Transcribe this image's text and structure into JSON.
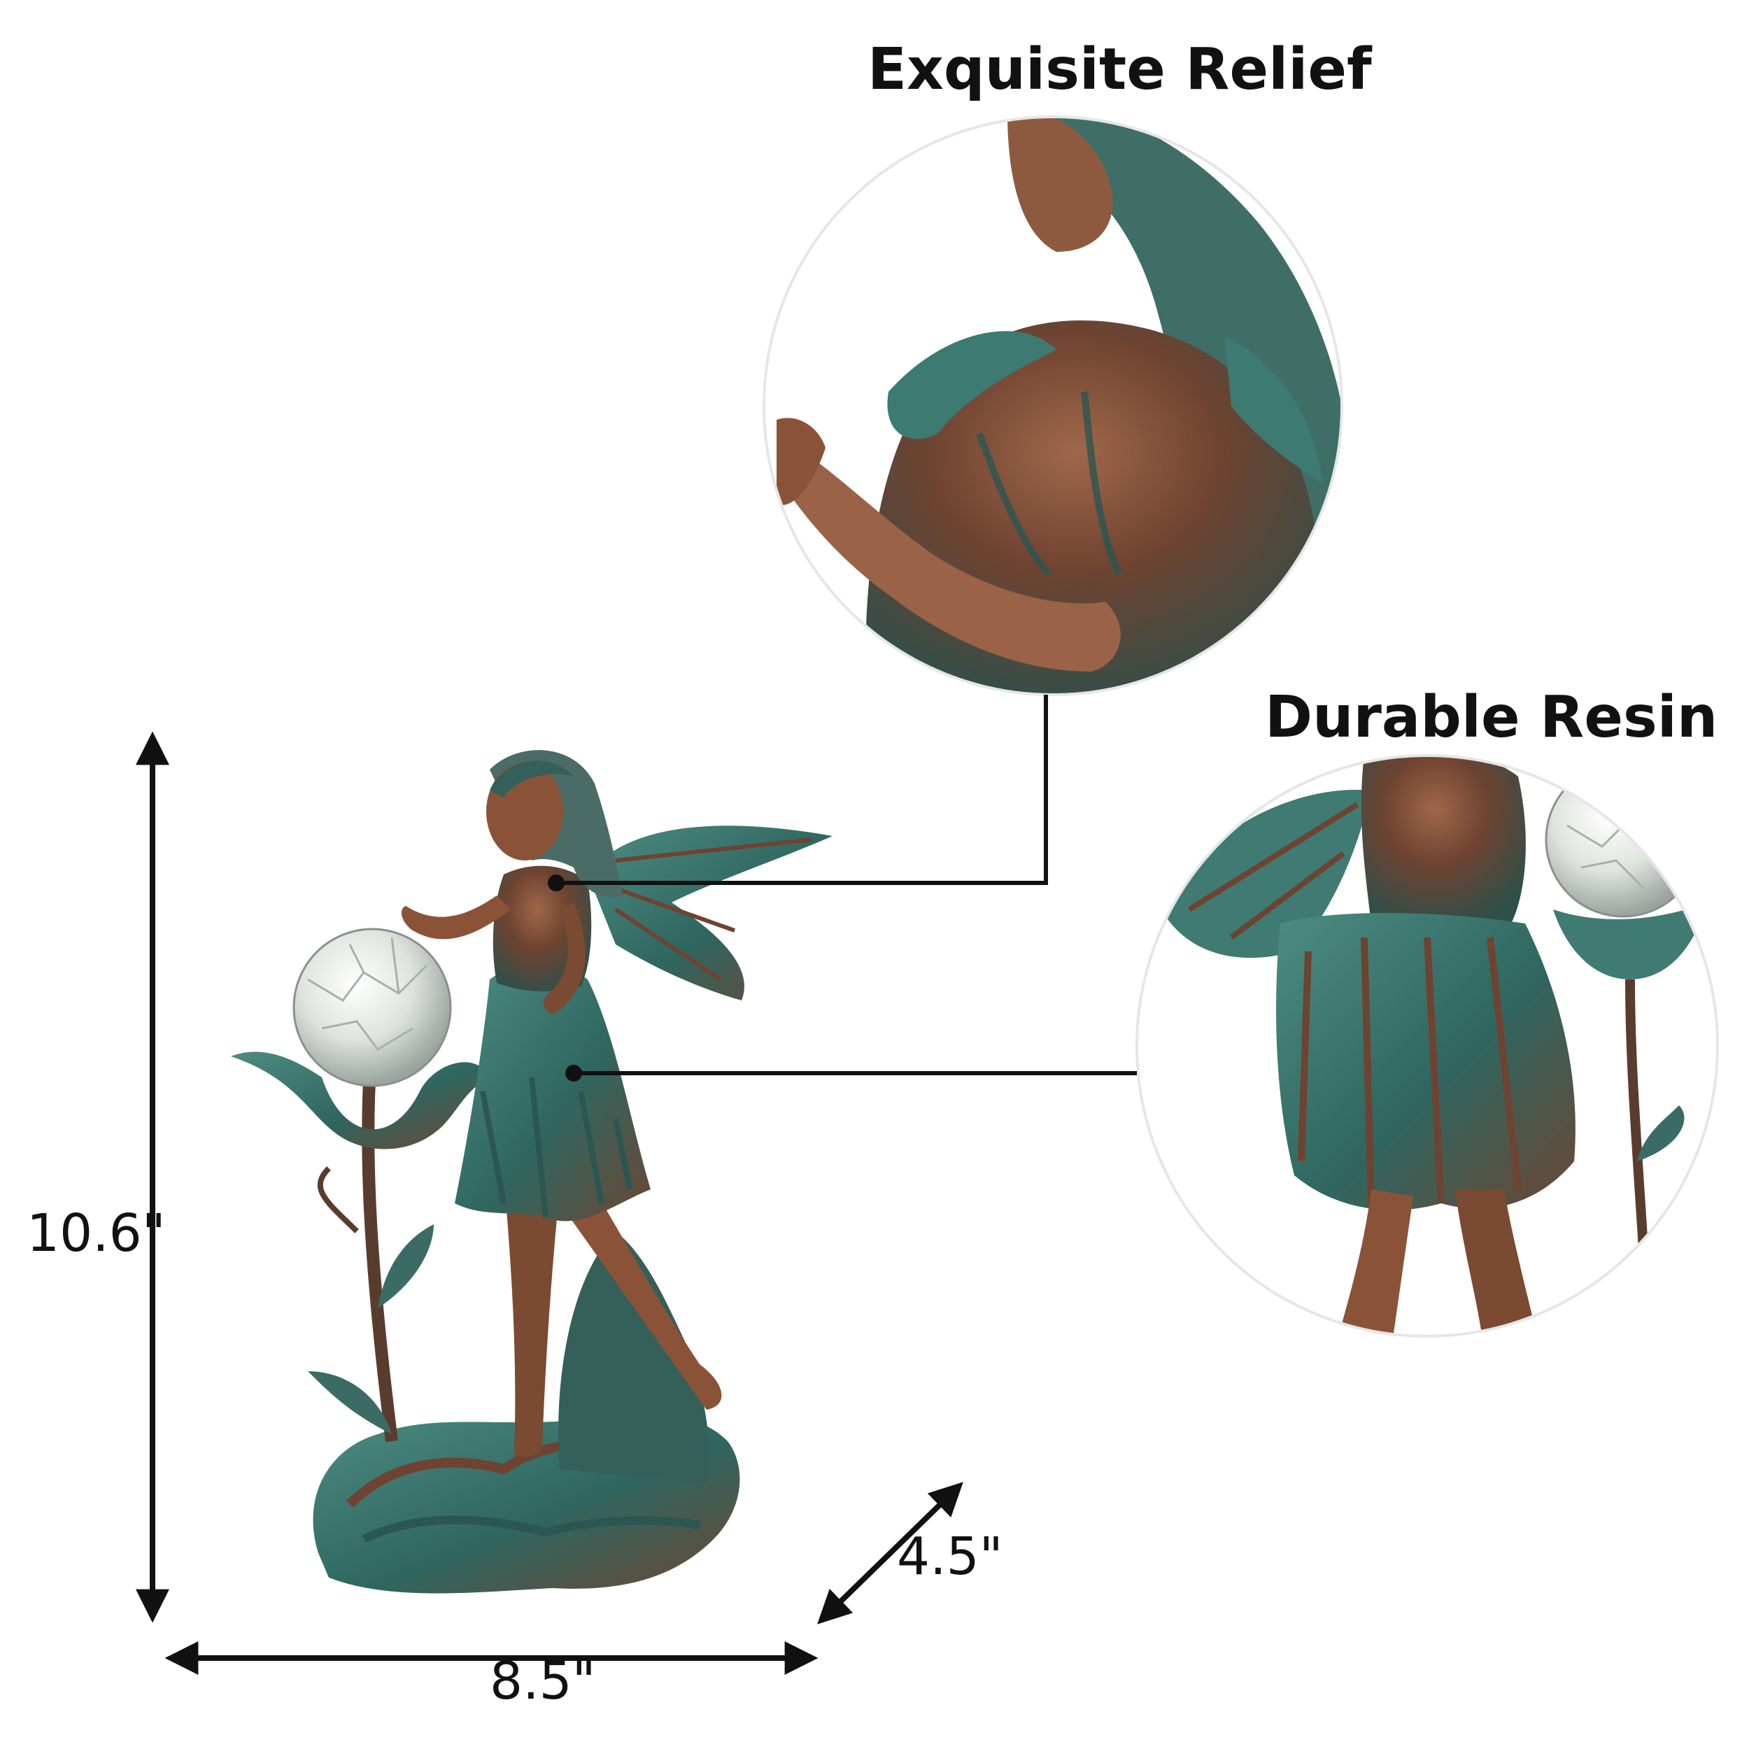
{
  "callouts": {
    "relief": "Exquisite Relief",
    "resin": "Durable Resin"
  },
  "dimensions": {
    "height": "10.6\"",
    "width": "8.5\"",
    "depth": "4.5\""
  },
  "colors": {
    "bronze": "#7a4a32",
    "patina": "#3d7a72",
    "text": "#111111"
  }
}
